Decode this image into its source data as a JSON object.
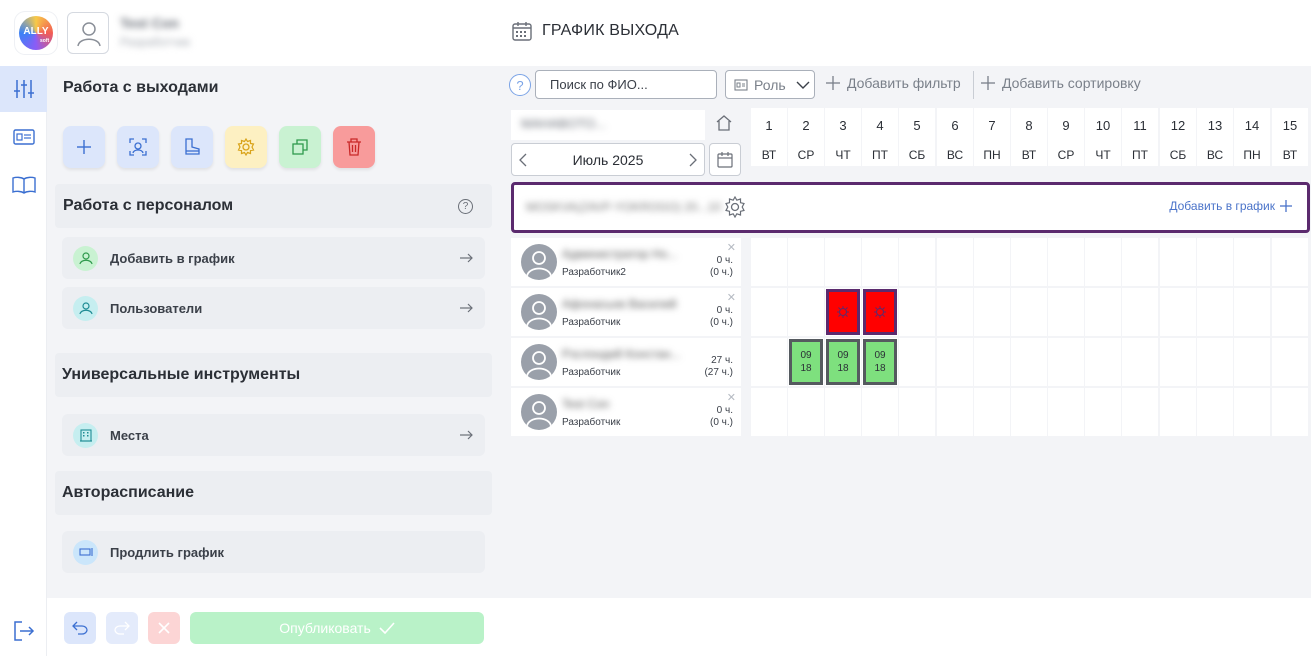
{
  "header": {
    "logo_text": "ALLY",
    "logo_sub": "soft",
    "user_name": "Test Con",
    "user_role": "Разработчик",
    "page_title": "ГРАФИК ВЫХОДА"
  },
  "panel": {
    "section_exits": "Работа с выходами",
    "section_staff": "Работа с персоналом",
    "section_tools": "Универсальные инструменты",
    "section_auto": "Авторасписание",
    "add_to_schedule_label": "Добавить в график",
    "users_label": "Пользователи",
    "places_label": "Места",
    "extend_schedule_label": "Продлить график"
  },
  "bottom": {
    "publish_label": "Опубликовать"
  },
  "toolbar": {
    "search_placeholder": "Поиск по ФИО...",
    "role_label": "Роль",
    "add_filter_label": "Добавить фильтр",
    "add_sort_label": "Добавить сортировку",
    "help": "?"
  },
  "calendar": {
    "org_name": "MAHABOTO...",
    "month_label": "Июль 2025",
    "days": [
      {
        "n": "1",
        "w": "ВТ"
      },
      {
        "n": "2",
        "w": "СР"
      },
      {
        "n": "3",
        "w": "ЧТ"
      },
      {
        "n": "4",
        "w": "ПТ"
      },
      {
        "n": "5",
        "w": "СБ"
      },
      {
        "n": "6",
        "w": "ВС"
      },
      {
        "n": "7",
        "w": "ПН"
      },
      {
        "n": "8",
        "w": "ВТ"
      },
      {
        "n": "9",
        "w": "СР"
      },
      {
        "n": "10",
        "w": "ЧТ"
      },
      {
        "n": "11",
        "w": "ПТ"
      },
      {
        "n": "12",
        "w": "СБ"
      },
      {
        "n": "13",
        "w": "ВС"
      },
      {
        "n": "14",
        "w": "ПН"
      },
      {
        "n": "15",
        "w": "ВТ"
      }
    ]
  },
  "place": {
    "name": "MOSKVA(ZAVP-YOKROGO) 20...10",
    "add_label": "Добавить в график"
  },
  "employees": [
    {
      "name": "Администратор Но...",
      "role": "Разработчик2",
      "hours": "0 ч.",
      "hours_total": "(0 ч.)"
    },
    {
      "name": "Афонасьев Василий",
      "role": "Разработчик",
      "hours": "0 ч.",
      "hours_total": "(0 ч.)"
    },
    {
      "name": "Рзслондий Констан...",
      "role": "Разработчик",
      "hours": "27 ч.",
      "hours_total": "(27 ч.)"
    },
    {
      "name": "Test Con",
      "role": "Разработчик",
      "hours": "0 ч.",
      "hours_total": "(0 ч.)"
    }
  ],
  "shift_time": {
    "start": "09",
    "end": "18"
  },
  "colors": {
    "accent": "#4a73c9",
    "sick": "#ff0000",
    "work": "#7ee07e",
    "place_border": "#5b2a6e",
    "publish": "#b9f2c8"
  }
}
